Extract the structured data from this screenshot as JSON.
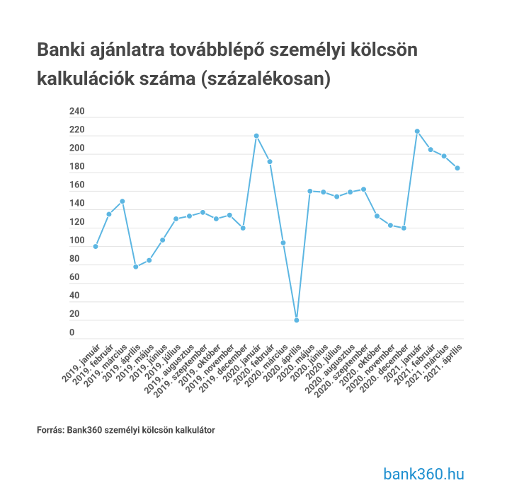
{
  "chart_data": {
    "type": "line",
    "title": [
      "Banki ajánlatra továbblépő személyi kölcsön",
      "kalkulációk száma (százalékosan)"
    ],
    "categories": [
      "2019. január",
      "2019. február",
      "2019. március",
      "2019. április",
      "2019. május",
      "2019. június",
      "2019. július",
      "2019. augusztus",
      "2019. szeptember",
      "2019. október",
      "2019. november",
      "2019. december",
      "2020. január",
      "2020. február",
      "2020. március",
      "2020. április",
      "2020. május",
      "2020. június",
      "2020. július",
      "2020. augusztus",
      "2020. szeptember",
      "2020. október",
      "2020. november",
      "2020. december",
      "2021. január",
      "2021. február",
      "2021. március",
      "2021. április"
    ],
    "values": [
      100,
      135,
      149,
      78,
      85,
      107,
      130,
      133,
      137,
      130,
      134,
      120,
      220,
      192,
      104,
      20,
      160,
      159,
      154,
      159,
      162,
      133,
      123,
      120,
      225,
      205,
      198,
      185
    ],
    "color": "#5cb6e2",
    "ylim": [
      0,
      240
    ],
    "yticks": [
      0,
      20,
      40,
      60,
      80,
      100,
      120,
      140,
      160,
      180,
      200,
      220,
      240
    ],
    "grid": true,
    "source": "Forrás: Bank360 személyi kölcsön kalkulátor",
    "logo": "bank360.hu"
  }
}
